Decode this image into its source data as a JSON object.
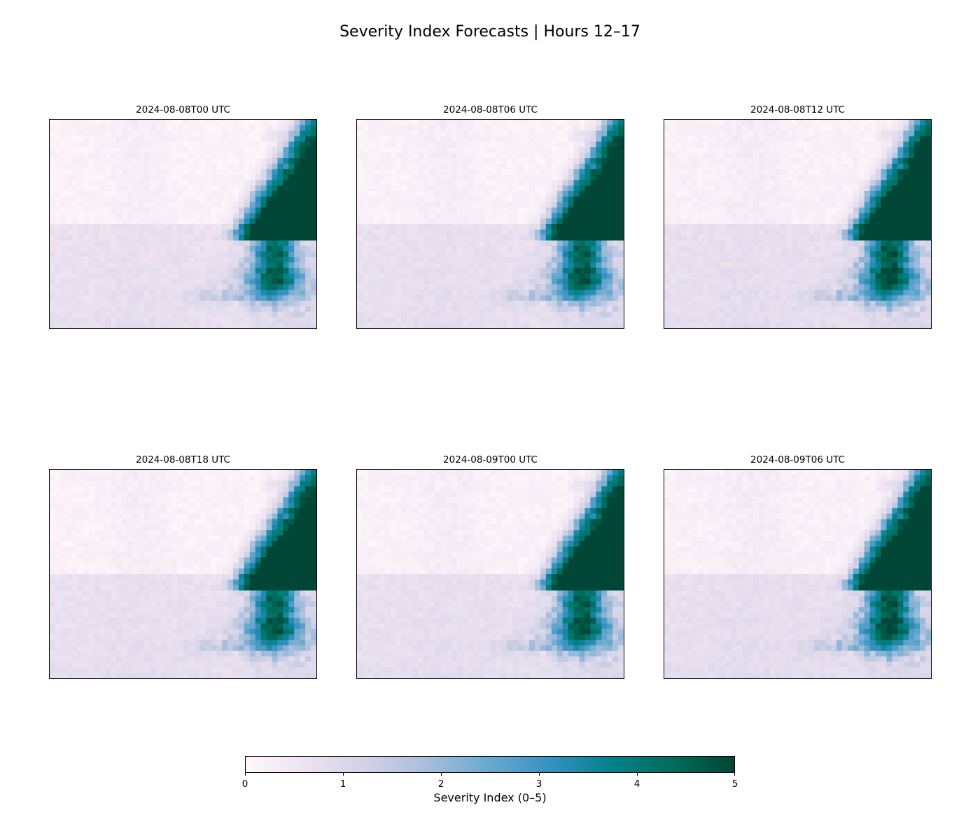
{
  "figure": {
    "title": "Severity Index Forecasts | Hours 12–17"
  },
  "chart_data": {
    "type": "heatmap",
    "colormap": [
      "#fff7fb",
      "#ece2f0",
      "#d0d1e6",
      "#a6bddb",
      "#67a9cf",
      "#3690c0",
      "#02818a",
      "#016c59",
      "#014636"
    ],
    "vmin": 0,
    "vmax": 5,
    "grid": false,
    "panels": [
      {
        "title": "2024-08-08T00 UTC",
        "shift": 0.0
      },
      {
        "title": "2024-08-08T06 UTC",
        "shift": 0.15
      },
      {
        "title": "2024-08-08T12 UTC",
        "shift": 0.3
      },
      {
        "title": "2024-08-08T18 UTC",
        "shift": 0.1
      },
      {
        "title": "2024-08-09T00 UTC",
        "shift": 0.2
      },
      {
        "title": "2024-08-09T06 UTC",
        "shift": 0.35
      }
    ],
    "colorbar": {
      "label": "Severity Index (0–5)",
      "ticks": [
        "0",
        "1",
        "2",
        "3",
        "4",
        "5"
      ]
    }
  }
}
